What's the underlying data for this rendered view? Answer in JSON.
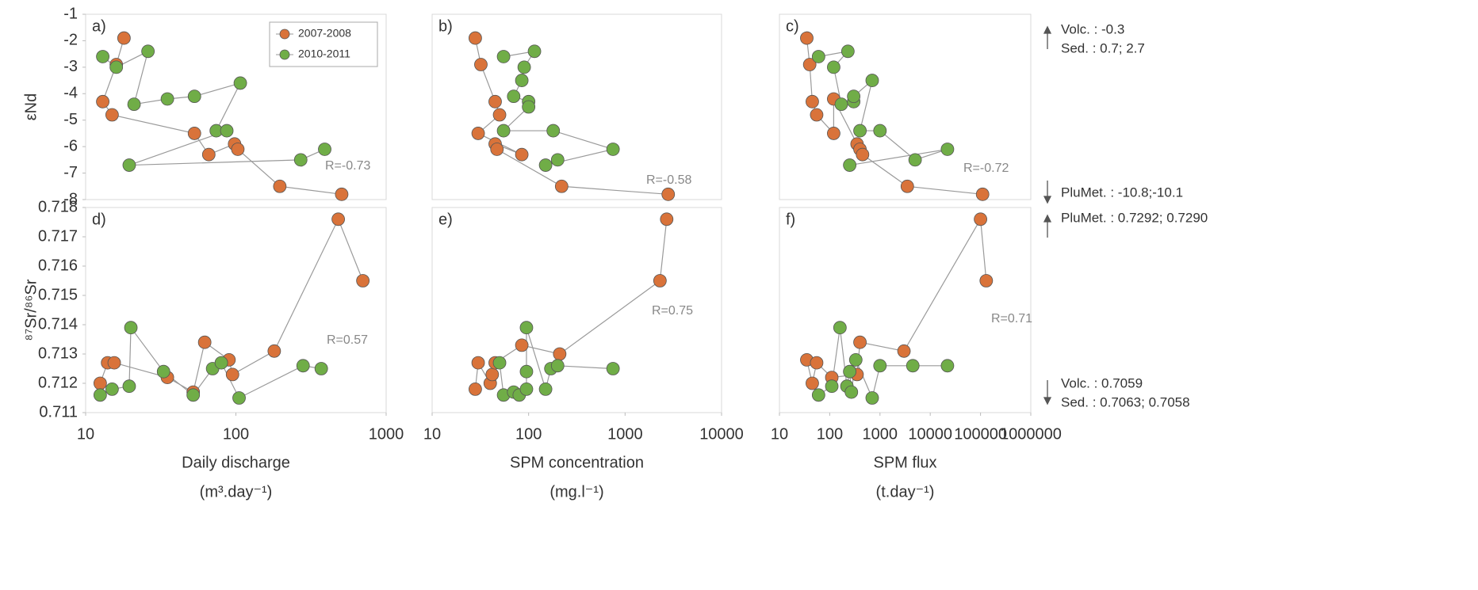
{
  "chart_data": [
    {
      "type": "scatter",
      "panel_label": "a)",
      "ylabel": "εNd",
      "r_label": "R=-0.73",
      "xlog": true,
      "xlim": [
        10,
        1000
      ],
      "ylim": [
        -8,
        -1
      ],
      "yticks": [
        -1,
        -2,
        -3,
        -4,
        -5,
        -6,
        -7,
        -8
      ],
      "series": [
        {
          "name": "2007-2008",
          "color": "#d9733a",
          "x": [
            18,
            16,
            13,
            15,
            53,
            66,
            98,
            103,
            196,
            506
          ],
          "values": [
            -1.9,
            -2.9,
            -4.3,
            -4.8,
            -5.5,
            -6.3,
            -5.9,
            -6.1,
            -7.5,
            -7.8
          ]
        },
        {
          "name": "2010-2011",
          "color": "#70ad47",
          "x": [
            13,
            16,
            26,
            21,
            35,
            53,
            107,
            74,
            87,
            19.5,
            270,
            390
          ],
          "values": [
            -2.6,
            -3.0,
            -2.4,
            -4.4,
            -4.2,
            -4.1,
            -3.6,
            -5.4,
            -5.4,
            -6.7,
            -6.5,
            -6.1
          ]
        }
      ]
    },
    {
      "type": "scatter",
      "panel_label": "b)",
      "r_label": "R=-0.58",
      "xlog": true,
      "xlim": [
        10,
        10000
      ],
      "ylim": [
        -8,
        -1
      ],
      "series": [
        {
          "color": "#d9733a",
          "x": [
            28,
            32,
            45,
            50,
            30,
            85,
            45,
            47,
            220,
            2800
          ],
          "values": [
            -1.9,
            -2.9,
            -4.3,
            -4.8,
            -5.5,
            -6.3,
            -5.9,
            -6.1,
            -7.5,
            -7.8
          ]
        },
        {
          "color": "#70ad47",
          "x": [
            55,
            115,
            90,
            85,
            70,
            100,
            100,
            55,
            180,
            750,
            150,
            200
          ],
          "values": [
            -2.6,
            -2.4,
            -3.0,
            -3.5,
            -4.1,
            -4.3,
            -4.5,
            -5.4,
            -5.4,
            -6.1,
            -6.7,
            -6.5
          ]
        }
      ]
    },
    {
      "type": "scatter",
      "panel_label": "c)",
      "r_label": "R=-0.72",
      "xlog": true,
      "xlim": [
        10,
        1000000
      ],
      "ylim": [
        -8,
        -1
      ],
      "annotations": [
        "Volc. : -0.3",
        "Sed. : 0.7; 2.7",
        "PluMet. : -10.8;-10.1"
      ],
      "series": [
        {
          "color": "#d9733a",
          "x": [
            35,
            40,
            45,
            55,
            120,
            120,
            350,
            400,
            450,
            3500,
            110000
          ],
          "values": [
            -1.9,
            -2.9,
            -4.3,
            -4.8,
            -5.5,
            -4.2,
            -5.9,
            -6.1,
            -6.3,
            -7.5,
            -7.8
          ]
        },
        {
          "color": "#70ad47",
          "x": [
            60,
            230,
            120,
            170,
            300,
            300,
            700,
            400,
            1000,
            5000,
            22000,
            250
          ],
          "values": [
            -2.6,
            -2.4,
            -3.0,
            -4.4,
            -4.3,
            -4.1,
            -3.5,
            -5.4,
            -5.4,
            -6.5,
            -6.1,
            -6.7
          ]
        }
      ]
    },
    {
      "type": "scatter",
      "panel_label": "d)",
      "ylabel": "⁸⁷Sr/⁸⁶Sr",
      "r_label": "R=0.57",
      "xlabel": "Daily discharge",
      "xunit": "(m³.day⁻¹)",
      "xlog": true,
      "xlim": [
        10,
        1000
      ],
      "xticks": [
        10,
        100,
        1000
      ],
      "ylim": [
        0.711,
        0.718
      ],
      "yticks": [
        0.711,
        0.712,
        0.713,
        0.714,
        0.715,
        0.716,
        0.717,
        0.718
      ],
      "series": [
        {
          "color": "#d9733a",
          "x": [
            12.5,
            14,
            15.5,
            35,
            52,
            62,
            90,
            95,
            180,
            480,
            700
          ],
          "values": [
            0.712,
            0.7127,
            0.7127,
            0.7122,
            0.7117,
            0.7134,
            0.7128,
            0.7123,
            0.7131,
            0.7176,
            0.7155
          ]
        },
        {
          "color": "#70ad47",
          "x": [
            12.5,
            15,
            19.5,
            20,
            33,
            52,
            70,
            80,
            105,
            280,
            370
          ],
          "values": [
            0.7116,
            0.7118,
            0.7119,
            0.7139,
            0.7124,
            0.7116,
            0.7125,
            0.7127,
            0.7115,
            0.7126,
            0.7125
          ]
        }
      ]
    },
    {
      "type": "scatter",
      "panel_label": "e)",
      "r_label": "R=0.75",
      "xlabel": "SPM concentration",
      "xunit": "(mg.l⁻¹)",
      "xlog": true,
      "xlim": [
        10,
        10000
      ],
      "xticks": [
        10,
        100,
        1000,
        10000
      ],
      "ylim": [
        0.711,
        0.718
      ],
      "series": [
        {
          "color": "#d9733a",
          "x": [
            28,
            30,
            40,
            42,
            45,
            85,
            210,
            2300,
            2700
          ],
          "values": [
            0.7118,
            0.7127,
            0.712,
            0.7123,
            0.7127,
            0.7133,
            0.713,
            0.7155,
            0.7176
          ]
        },
        {
          "color": "#70ad47",
          "x": [
            50,
            55,
            70,
            80,
            95,
            95,
            95,
            150,
            170,
            200,
            750
          ],
          "values": [
            0.7127,
            0.7116,
            0.7117,
            0.7116,
            0.7118,
            0.7124,
            0.7139,
            0.7118,
            0.7125,
            0.7126,
            0.7125
          ]
        }
      ]
    },
    {
      "type": "scatter",
      "panel_label": "f)",
      "r_label": "R=0.71",
      "xlabel": "SPM flux",
      "xunit": "(t.day⁻¹)",
      "xlog": true,
      "xlim": [
        10,
        1000000
      ],
      "xticks": [
        10,
        100,
        1000,
        10000,
        100000,
        1000000
      ],
      "ylim": [
        0.711,
        0.718
      ],
      "annotations": [
        "PluMet. : 0.7292; 0.7290",
        "Volc. : 0.7059",
        "Sed. : 0.7063; 0.7058"
      ],
      "series": [
        {
          "color": "#d9733a",
          "x": [
            35,
            45,
            55,
            110,
            350,
            400,
            3000,
            100000,
            130000
          ],
          "values": [
            0.7128,
            0.712,
            0.7127,
            0.7122,
            0.7123,
            0.7134,
            0.7131,
            0.7176,
            0.7155
          ]
        },
        {
          "color": "#70ad47",
          "x": [
            60,
            110,
            160,
            220,
            250,
            270,
            330,
            700,
            1000,
            4500,
            22000
          ],
          "values": [
            0.7116,
            0.7119,
            0.7139,
            0.7119,
            0.7124,
            0.7117,
            0.7128,
            0.7115,
            0.7126,
            0.7126,
            0.7126
          ]
        }
      ]
    }
  ]
}
